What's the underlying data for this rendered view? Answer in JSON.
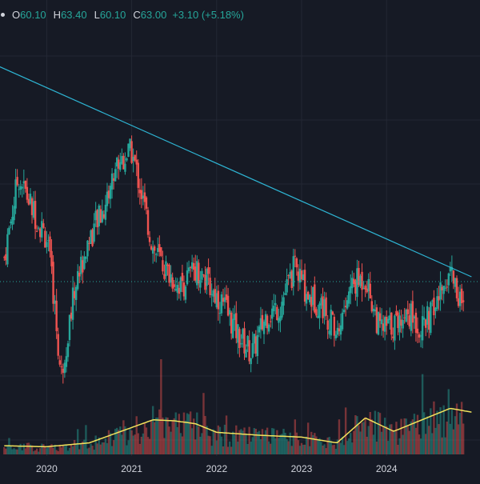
{
  "legend": {
    "open_label": "O",
    "open": "60.10",
    "high_label": "H",
    "high": "63.40",
    "low_label": "L",
    "low": "60.10",
    "close_label": "C",
    "close": "63.00",
    "change": "+3.10 (+5.18%)"
  },
  "colors": {
    "background": "#161a25",
    "up": "#26a69a",
    "down": "#ef5350",
    "trendline": "#2eb5d4",
    "volume_ma": "#f2e35c",
    "price_line": "#26a69a",
    "text": "#d1d4dc"
  },
  "chart_data": {
    "type": "candlestick",
    "interval": "weekly",
    "x_axis": {
      "tick_labels": [
        "2020",
        "2021",
        "2022",
        "2023",
        "2024"
      ]
    },
    "last_price": 63.0,
    "price_range_estimate": [
      40,
      115
    ],
    "trendline": {
      "description": "descending resistance line from 2019 high through 2021 high to late 2024",
      "points": [
        {
          "date": "2019-06",
          "price": 108
        },
        {
          "date": "2025-01",
          "price": 64
        }
      ]
    },
    "price_path": [
      {
        "date": "2019-07",
        "price": 68
      },
      {
        "date": "2019-09",
        "price": 85
      },
      {
        "date": "2019-11",
        "price": 78
      },
      {
        "date": "2020-01",
        "price": 72
      },
      {
        "date": "2020-02",
        "price": 60
      },
      {
        "date": "2020-03",
        "price": 43
      },
      {
        "date": "2020-05",
        "price": 62
      },
      {
        "date": "2020-07",
        "price": 72
      },
      {
        "date": "2020-09",
        "price": 78
      },
      {
        "date": "2020-11",
        "price": 88
      },
      {
        "date": "2021-01",
        "price": 90
      },
      {
        "date": "2021-02",
        "price": 84
      },
      {
        "date": "2021-04",
        "price": 70
      },
      {
        "date": "2021-06",
        "price": 65
      },
      {
        "date": "2021-08",
        "price": 62
      },
      {
        "date": "2021-10",
        "price": 66
      },
      {
        "date": "2021-12",
        "price": 62
      },
      {
        "date": "2022-02",
        "price": 58
      },
      {
        "date": "2022-04",
        "price": 52
      },
      {
        "date": "2022-06",
        "price": 48
      },
      {
        "date": "2022-08",
        "price": 56
      },
      {
        "date": "2022-10",
        "price": 58
      },
      {
        "date": "2022-12",
        "price": 66
      },
      {
        "date": "2023-02",
        "price": 60
      },
      {
        "date": "2023-04",
        "price": 58
      },
      {
        "date": "2023-06",
        "price": 52
      },
      {
        "date": "2023-08",
        "price": 62
      },
      {
        "date": "2023-10",
        "price": 64
      },
      {
        "date": "2023-12",
        "price": 53
      },
      {
        "date": "2024-02",
        "price": 54
      },
      {
        "date": "2024-04",
        "price": 57
      },
      {
        "date": "2024-06",
        "price": 53
      },
      {
        "date": "2024-08",
        "price": 58
      },
      {
        "date": "2024-10",
        "price": 66
      },
      {
        "date": "2024-12",
        "price": 56
      }
    ],
    "volume": {
      "ma_path": [
        {
          "date": "2019-07",
          "value": 0.09
        },
        {
          "date": "2020-01",
          "value": 0.08
        },
        {
          "date": "2020-07",
          "value": 0.12
        },
        {
          "date": "2021-01",
          "value": 0.28
        },
        {
          "date": "2021-04",
          "value": 0.36
        },
        {
          "date": "2021-07",
          "value": 0.35
        },
        {
          "date": "2021-10",
          "value": 0.32
        },
        {
          "date": "2022-01",
          "value": 0.23
        },
        {
          "date": "2022-07",
          "value": 0.2
        },
        {
          "date": "2023-01",
          "value": 0.18
        },
        {
          "date": "2023-06",
          "value": 0.12
        },
        {
          "date": "2023-10",
          "value": 0.38
        },
        {
          "date": "2024-02",
          "value": 0.24
        },
        {
          "date": "2024-06",
          "value": 0.36
        },
        {
          "date": "2024-10",
          "value": 0.48
        },
        {
          "date": "2025-01",
          "value": 0.44
        }
      ]
    }
  }
}
